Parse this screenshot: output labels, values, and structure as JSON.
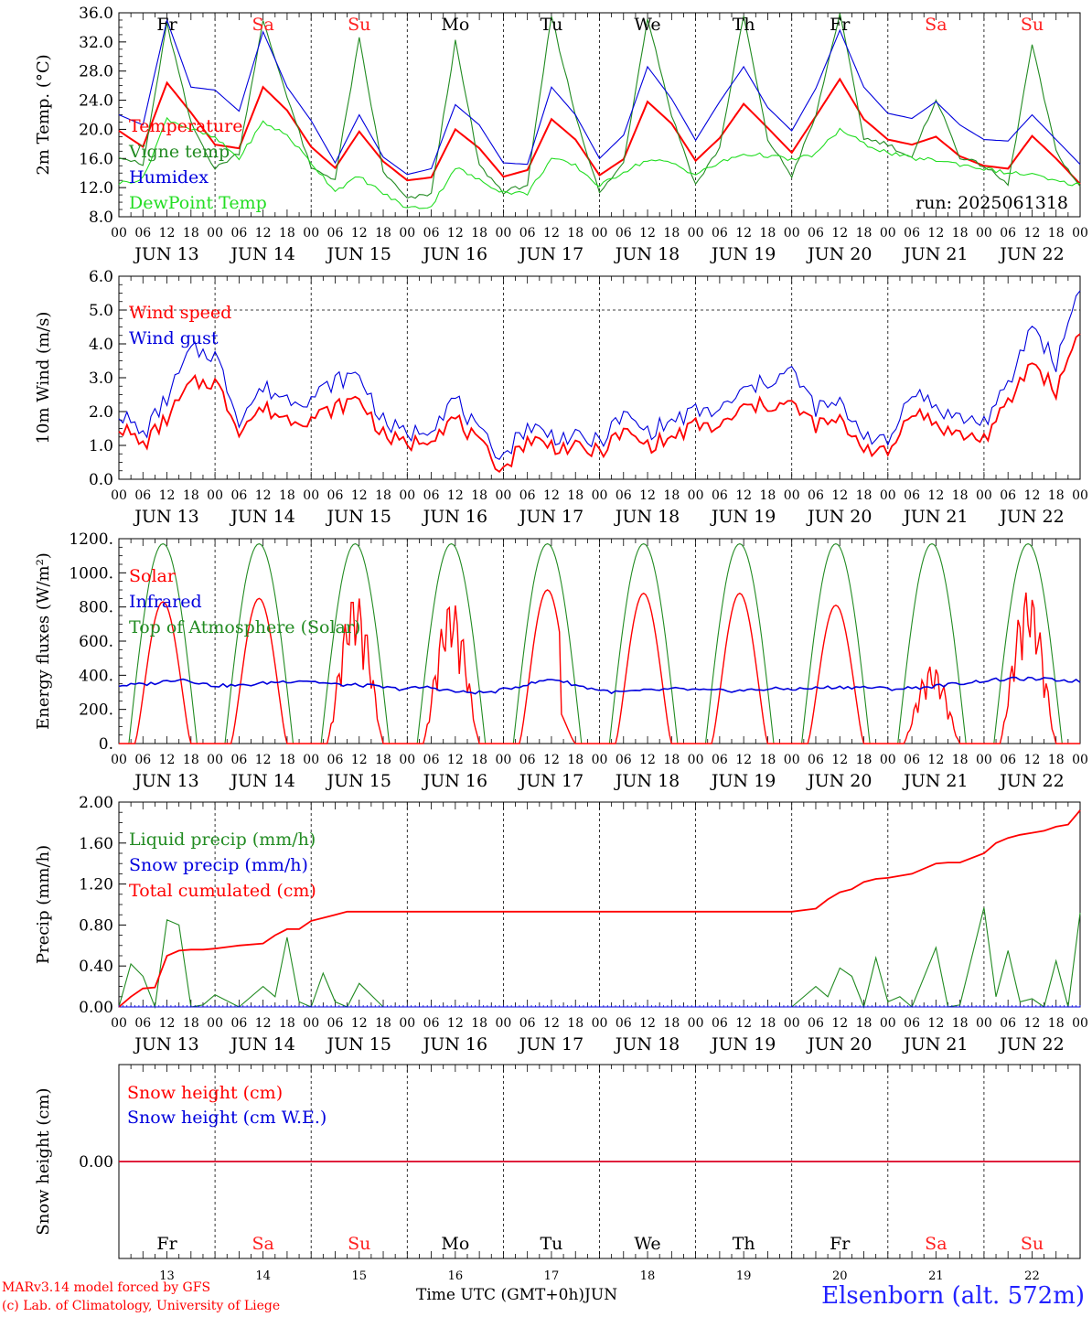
{
  "run_label": "run: 2025061318",
  "footer": {
    "model": "MARv3.14 model forced by GFS",
    "lab": "(c) Lab. of Climatology, University of Liege",
    "time_axis": "Time UTC (GMT+0h)",
    "month": "JUN",
    "station": "Elsenborn (alt. 572m)"
  },
  "days": {
    "dates": [
      "JUN 13",
      "JUN 14",
      "JUN 15",
      "JUN 16",
      "JUN 17",
      "JUN 18",
      "JUN 19",
      "JUN 20",
      "JUN 21",
      "JUN 22"
    ],
    "weekdays": [
      "Fr",
      "Sa",
      "Su",
      "Mo",
      "Tu",
      "We",
      "Th",
      "Fr",
      "Sa",
      "Su"
    ],
    "day_numbers": [
      "13",
      "14",
      "15",
      "16",
      "17",
      "18",
      "19",
      "20",
      "21",
      "22"
    ],
    "weekend_color": "#ff2020",
    "weekday_color": "#000000",
    "hour_ticks": [
      "00",
      "06",
      "12",
      "18"
    ],
    "end_tick": "00"
  },
  "chart_data": [
    {
      "type": "line",
      "name": "temperature",
      "ylabel": "2m Temp. (°C)",
      "ylim": [
        8,
        36
      ],
      "yticks": [
        "8.0",
        "12.0",
        "16.0",
        "20.0",
        "24.0",
        "28.0",
        "32.0",
        "36.0"
      ],
      "x_unit": "hours since 2025-06-13 00 UTC",
      "x": [
        0,
        6,
        12,
        18,
        24,
        30,
        36,
        42,
        48,
        54,
        60,
        66,
        72,
        78,
        84,
        90,
        96,
        102,
        108,
        114,
        120,
        126,
        132,
        138,
        144,
        150,
        156,
        162,
        168,
        174,
        180,
        186,
        192,
        198,
        204,
        210,
        216,
        222,
        228,
        234,
        240
      ],
      "series": [
        {
          "name": "Temperature",
          "color": "#ff0000",
          "values": [
            19.8,
            17.6,
            26.4,
            22.3,
            17.9,
            17.4,
            25.8,
            22.6,
            17.6,
            14.7,
            19.7,
            15.6,
            13.0,
            13.4,
            20.0,
            17.4,
            13.5,
            14.4,
            21.4,
            18.6,
            13.7,
            15.9,
            23.8,
            20.8,
            15.7,
            18.8,
            23.5,
            20.2,
            16.8,
            21.8,
            26.9,
            21.4,
            18.6,
            17.9,
            19.0,
            16.3,
            15.0,
            14.6,
            19.1,
            16.0,
            12.5
          ]
        },
        {
          "name": "Vigne temp",
          "color": "#228b22",
          "values": [
            16.4,
            15.0,
            34.5,
            20.8,
            14.6,
            16.8,
            34.8,
            24.6,
            14.6,
            13.2,
            32.4,
            14.2,
            10.4,
            11.2,
            32.0,
            15.0,
            11.4,
            12.4,
            35.6,
            22.0,
            11.2,
            15.4,
            35.4,
            22.0,
            12.4,
            17.5,
            35.6,
            18.6,
            13.6,
            21.8,
            36.0,
            18.8,
            18.0,
            16.0,
            24.2,
            16.2,
            15.0,
            12.4,
            31.6,
            17.0,
            12.0
          ]
        },
        {
          "name": "Humidex",
          "color": "#0000dd",
          "values": [
            22.0,
            20.6,
            35.0,
            25.8,
            25.4,
            22.5,
            33.4,
            25.8,
            21.2,
            15.4,
            22.0,
            16.2,
            13.8,
            14.6,
            23.4,
            20.6,
            15.4,
            15.2,
            25.8,
            22.0,
            16.0,
            19.2,
            28.6,
            24.2,
            18.5,
            23.8,
            28.6,
            23.0,
            19.8,
            25.6,
            33.6,
            25.8,
            22.2,
            21.5,
            23.8,
            20.6,
            18.6,
            18.4,
            22.0,
            18.6,
            15.2
          ]
        },
        {
          "name": "DewPoint Temp",
          "color": "#22dd22",
          "values": [
            12.6,
            13.2,
            21.5,
            20.0,
            18.8,
            16.0,
            21.0,
            19.2,
            15.4,
            11.6,
            13.5,
            11.2,
            9.2,
            9.4,
            14.8,
            13.0,
            11.4,
            11.2,
            16.0,
            15.0,
            12.2,
            14.2,
            15.8,
            15.4,
            13.8,
            15.4,
            16.6,
            16.4,
            15.8,
            16.6,
            20.0,
            18.0,
            16.8,
            16.0,
            15.8,
            15.2,
            14.6,
            14.0,
            13.8,
            12.8,
            12.4
          ]
        }
      ]
    },
    {
      "type": "line",
      "name": "wind",
      "ylabel": "10m Wind (m/s)",
      "ylim": [
        0,
        6
      ],
      "yticks": [
        "0.0",
        "1.0",
        "2.0",
        "3.0",
        "4.0",
        "5.0",
        "6.0"
      ],
      "x_unit": "hours since 2025-06-13 00 UTC",
      "x": [
        0,
        6,
        12,
        18,
        24,
        30,
        36,
        42,
        48,
        54,
        60,
        66,
        72,
        78,
        84,
        90,
        96,
        102,
        108,
        114,
        120,
        126,
        132,
        138,
        144,
        150,
        156,
        162,
        168,
        174,
        180,
        186,
        192,
        198,
        204,
        210,
        216,
        222,
        228,
        234,
        240
      ],
      "series": [
        {
          "name": "Wind speed",
          "color": "#ff0000",
          "values": [
            1.6,
            1.0,
            1.8,
            2.8,
            2.9,
            1.5,
            2.1,
            1.8,
            1.8,
            2.1,
            2.4,
            1.3,
            1.0,
            1.3,
            1.8,
            1.0,
            0.3,
            1.2,
            1.0,
            0.9,
            0.8,
            1.4,
            1.0,
            1.2,
            1.6,
            1.5,
            2.1,
            2.2,
            2.2,
            1.6,
            1.7,
            1.0,
            0.7,
            2.1,
            1.6,
            1.3,
            1.2,
            2.2,
            3.5,
            2.6,
            4.5
          ]
        },
        {
          "name": "Wind gust",
          "color": "#0000dd",
          "values": [
            2.0,
            1.3,
            2.4,
            3.8,
            3.7,
            1.8,
            2.7,
            2.4,
            2.4,
            2.9,
            3.1,
            1.7,
            1.3,
            1.6,
            2.4,
            1.3,
            0.7,
            1.6,
            1.3,
            1.2,
            1.1,
            1.9,
            1.4,
            1.7,
            2.0,
            2.0,
            2.6,
            2.9,
            3.2,
            2.1,
            2.2,
            1.4,
            1.0,
            2.7,
            2.1,
            1.8,
            1.7,
            2.7,
            4.6,
            3.4,
            5.8
          ]
        }
      ]
    },
    {
      "type": "line",
      "name": "energy",
      "ylabel": "Energy fluxes (W/m²)",
      "ylim": [
        0,
        1200
      ],
      "yticks": [
        "0.",
        "200.",
        "400.",
        "600.",
        "800.",
        "1000.",
        "1200."
      ],
      "x_unit": "hours since 2025-06-13 00 UTC",
      "series": [
        {
          "name": "Solar",
          "color": "#ff0000",
          "day_peaks": [
            830,
            850,
            880,
            840,
            900,
            880,
            880,
            810,
            460,
            900
          ]
        },
        {
          "name": "Infrared",
          "color": "#0000dd",
          "values": [
            340,
            350,
            380,
            340,
            340,
            360,
            370,
            345,
            340,
            320,
            330,
            300,
            300,
            340,
            380,
            330,
            300,
            310,
            320,
            310,
            310,
            320,
            320,
            330,
            330,
            320,
            330,
            350,
            370,
            380,
            375,
            365
          ]
        },
        {
          "name": "Top of Atmosphere (Solar)",
          "color": "#228b22",
          "day_peaks": [
            1170,
            1170,
            1170,
            1170,
            1170,
            1170,
            1170,
            1170,
            1170,
            1170
          ]
        }
      ]
    },
    {
      "type": "line",
      "name": "precip",
      "ylabel": "Precip (mm/h)",
      "ylim": [
        0,
        2
      ],
      "yticks": [
        "0.00",
        "0.40",
        "0.80",
        "1.20",
        "1.60",
        "2.00"
      ],
      "x_unit": "hours since 2025-06-13 00 UTC",
      "x": [
        0,
        3,
        6,
        9,
        12,
        15,
        18,
        21,
        24,
        30,
        36,
        39,
        42,
        45,
        48,
        51,
        54,
        57,
        60,
        66,
        72,
        96,
        120,
        144,
        168,
        174,
        177,
        180,
        183,
        186,
        189,
        192,
        195,
        198,
        204,
        207,
        210,
        216,
        219,
        222,
        225,
        228,
        231,
        234,
        237,
        240
      ],
      "series": [
        {
          "name": "Liquid precip (mm/h)",
          "color": "#228b22",
          "values": [
            0.0,
            0.42,
            0.3,
            0.0,
            0.85,
            0.8,
            0.0,
            0.02,
            0.12,
            0.0,
            0.2,
            0.1,
            0.68,
            0.05,
            0.0,
            0.33,
            0.05,
            0.0,
            0.23,
            0.0,
            0.0,
            0.0,
            0.0,
            0.0,
            0.0,
            0.2,
            0.1,
            0.38,
            0.3,
            0.0,
            0.48,
            0.05,
            0.1,
            0.0,
            0.58,
            0.0,
            0.02,
            0.97,
            0.1,
            0.55,
            0.05,
            0.08,
            0.0,
            0.45,
            0.0,
            0.92
          ]
        },
        {
          "name": "Snow precip (mm/h)",
          "color": "#0000dd",
          "values": [
            0,
            0,
            0,
            0,
            0,
            0,
            0,
            0,
            0,
            0,
            0,
            0,
            0,
            0,
            0,
            0,
            0,
            0,
            0,
            0,
            0,
            0,
            0,
            0,
            0,
            0,
            0,
            0,
            0,
            0,
            0,
            0,
            0,
            0,
            0,
            0,
            0,
            0,
            0,
            0,
            0,
            0,
            0,
            0,
            0,
            0
          ]
        },
        {
          "name": "Total cumulated (cm)",
          "color": "#ff0000",
          "values": [
            0.0,
            0.1,
            0.18,
            0.19,
            0.5,
            0.55,
            0.56,
            0.56,
            0.57,
            0.6,
            0.62,
            0.7,
            0.76,
            0.76,
            0.84,
            0.87,
            0.9,
            0.93,
            0.93,
            0.93,
            0.93,
            0.93,
            0.93,
            0.93,
            0.93,
            0.96,
            1.05,
            1.12,
            1.15,
            1.22,
            1.25,
            1.26,
            1.28,
            1.3,
            1.4,
            1.41,
            1.41,
            1.5,
            1.6,
            1.65,
            1.68,
            1.7,
            1.72,
            1.76,
            1.78,
            1.92
          ]
        }
      ]
    },
    {
      "type": "line",
      "name": "snow",
      "ylabel": "Snow height (cm)",
      "yticks": [
        "0.00"
      ],
      "series": [
        {
          "name": "Snow height (cm)",
          "color": "#ff0000",
          "values": [
            0,
            0
          ]
        },
        {
          "name": "Snow height (cm W.E.)",
          "color": "#0000dd",
          "values": [
            0,
            0
          ]
        }
      ]
    }
  ]
}
